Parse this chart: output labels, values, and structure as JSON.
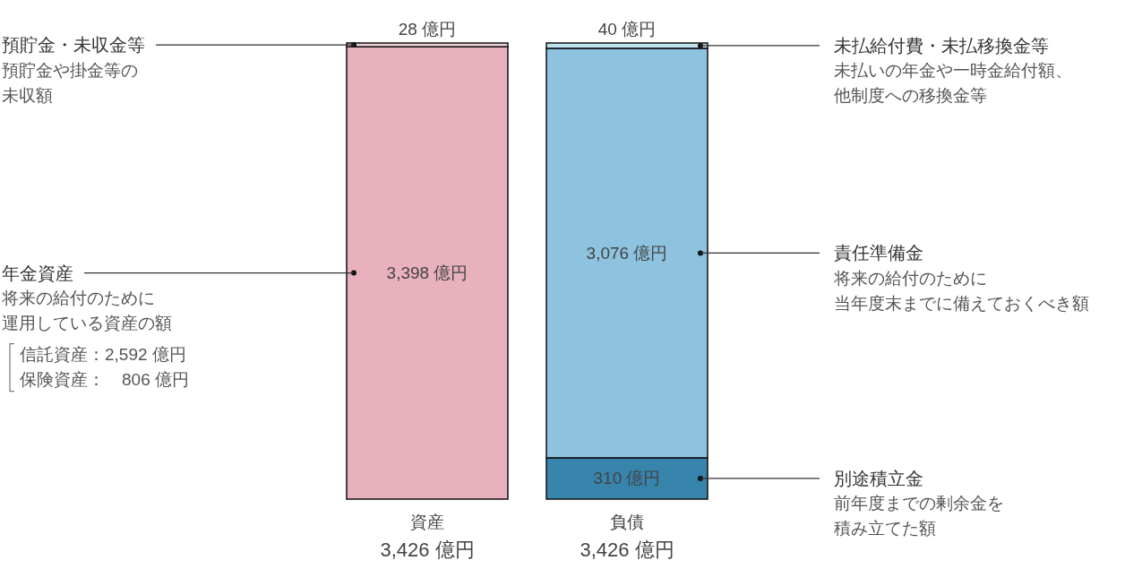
{
  "chart_data": {
    "type": "bar",
    "stacked": true,
    "categories": [
      "資産",
      "負債"
    ],
    "series": [
      {
        "name": "年金資産",
        "color": "#e8b1bd",
        "values": [
          3398,
          null
        ],
        "value_labels": [
          "3,398 億円",
          null
        ]
      },
      {
        "name": "預貯金・未収金等",
        "color": "#f0cfd6",
        "values": [
          28,
          null
        ],
        "value_labels": [
          "28 億円",
          null
        ]
      },
      {
        "name": "別途積立金",
        "color": "#3784ad",
        "values": [
          null,
          310
        ],
        "value_labels": [
          null,
          "310 億円"
        ]
      },
      {
        "name": "責任準備金",
        "color": "#8dc3df",
        "values": [
          null,
          3076
        ],
        "value_labels": [
          null,
          "3,076 億円"
        ]
      },
      {
        "name": "未払給付費・未払移換金等",
        "color": "#c0e1f0",
        "values": [
          null,
          40
        ],
        "value_labels": [
          null,
          "40 億円"
        ]
      }
    ],
    "totals": [
      "3,426 億円",
      "3,426 億円"
    ],
    "annotations": [
      "預貯金や掛金等の",
      "未収額",
      "将来の給付のために",
      "運用している資産の額",
      "信託資産：2,592 億円",
      "保険資産：　806 億円",
      "未払いの年金や一時金給付額、",
      "他制度への移換金等",
      "将来の給付のために",
      "当年度末までに備えておくべき額",
      "前年度までの剰余金を",
      "積み立てた額"
    ]
  }
}
